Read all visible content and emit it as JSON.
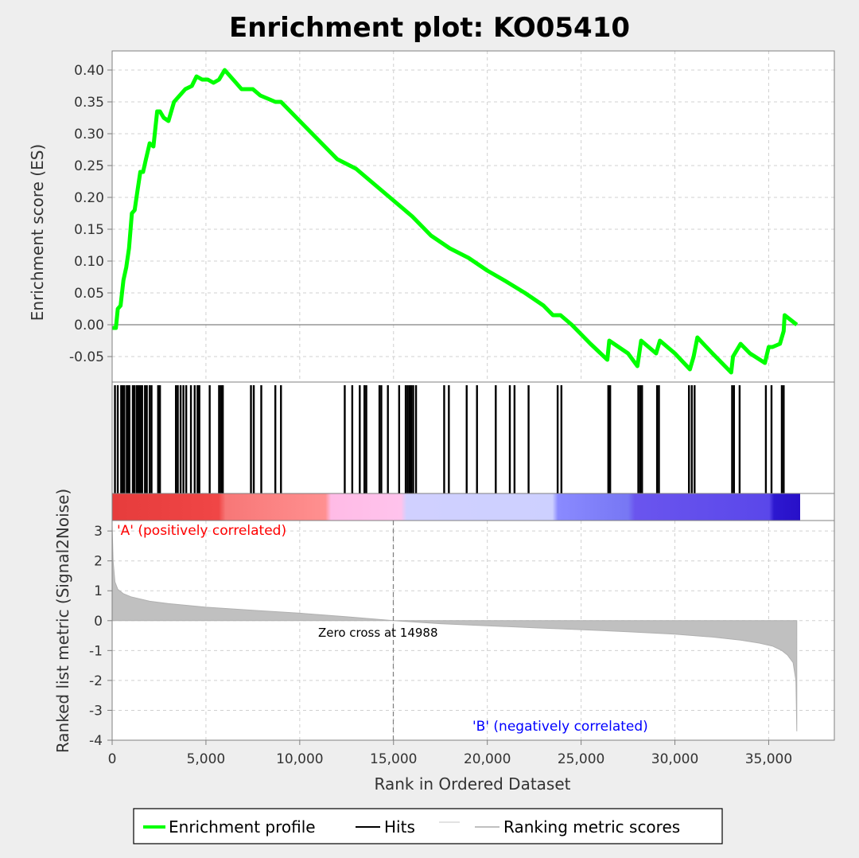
{
  "title": "Enrichment plot: KO05410",
  "colors": {
    "background": "#eeeeee",
    "plot_background": "#ffffff",
    "es_line": "#00ff00",
    "hits": "#000000",
    "metric_fill": "#c0c0c0",
    "positive_label": "#ff0000",
    "negative_label": "#0000ff"
  },
  "chart_data": [
    {
      "type": "line",
      "name": "enrichment-score-panel",
      "ylabel": "Enrichment score (ES)",
      "xlim": [
        0,
        38500
      ],
      "ylim": [
        -0.09,
        0.43
      ],
      "yticks": [
        0.4,
        0.35,
        0.3,
        0.25,
        0.2,
        0.15,
        0.1,
        0.05,
        0.0,
        -0.05
      ],
      "ytick_labels": [
        "0.40",
        "0.35",
        "0.30",
        "0.25",
        "0.20",
        "0.15",
        "0.10",
        "0.05",
        "0.00",
        "-0.05"
      ],
      "grid": true,
      "series": [
        {
          "name": "Enrichment profile",
          "x": [
            0,
            200,
            300,
            450,
            600,
            750,
            900,
            1050,
            1200,
            1350,
            1500,
            1650,
            1800,
            2000,
            2200,
            2400,
            2550,
            2750,
            3000,
            3300,
            3600,
            3900,
            4250,
            4500,
            4800,
            5100,
            5400,
            5700,
            6000,
            6300,
            6600,
            6900,
            7300,
            7500,
            7900,
            8300,
            8700,
            9000,
            10000,
            11000,
            12000,
            13000,
            14000,
            15000,
            16000,
            17000,
            18000,
            19000,
            20000,
            21000,
            22000,
            23000,
            23500,
            23900,
            24500,
            25500,
            26400,
            26500,
            27500,
            28000,
            28200,
            29000,
            29200,
            30000,
            30800,
            31000,
            31200,
            32000,
            33000,
            33100,
            33500,
            34000,
            34800,
            35000,
            35200,
            35600,
            35800,
            35850,
            36500
          ],
          "values": [
            -0.005,
            -0.005,
            0.025,
            0.03,
            0.07,
            0.09,
            0.12,
            0.175,
            0.18,
            0.21,
            0.24,
            0.24,
            0.26,
            0.285,
            0.28,
            0.335,
            0.335,
            0.325,
            0.32,
            0.35,
            0.36,
            0.37,
            0.375,
            0.39,
            0.385,
            0.385,
            0.38,
            0.385,
            0.4,
            0.39,
            0.38,
            0.37,
            0.37,
            0.37,
            0.36,
            0.355,
            0.35,
            0.35,
            0.32,
            0.29,
            0.26,
            0.245,
            0.22,
            0.195,
            0.17,
            0.14,
            0.12,
            0.105,
            0.085,
            0.068,
            0.05,
            0.03,
            0.015,
            0.015,
            0.0,
            -0.03,
            -0.055,
            -0.025,
            -0.045,
            -0.065,
            -0.025,
            -0.045,
            -0.025,
            -0.045,
            -0.07,
            -0.05,
            -0.02,
            -0.045,
            -0.075,
            -0.05,
            -0.03,
            -0.045,
            -0.06,
            -0.035,
            -0.035,
            -0.03,
            -0.01,
            0.015,
            0.0
          ]
        }
      ]
    },
    {
      "type": "bar",
      "name": "hits-panel",
      "series_name": "Hits",
      "hit_positions": [
        150,
        300,
        480,
        560,
        650,
        780,
        850,
        920,
        1100,
        1180,
        1300,
        1380,
        1450,
        1520,
        1600,
        1750,
        1850,
        2000,
        2100,
        2450,
        2550,
        3400,
        3500,
        3650,
        3800,
        3950,
        4200,
        4400,
        4550,
        4650,
        5200,
        5700,
        5800,
        5900,
        7400,
        7550,
        7950,
        8700,
        9000,
        12400,
        12800,
        13200,
        13450,
        13550,
        14250,
        14350,
        14700,
        15300,
        15650,
        15750,
        15850,
        15950,
        16050,
        16200,
        17700,
        17950,
        18900,
        19450,
        20450,
        21200,
        21450,
        22200,
        23750,
        23950,
        26450,
        26550,
        28050,
        28150,
        28250,
        29050,
        29150,
        30750,
        30900,
        31050,
        33050,
        33150,
        33450,
        34850,
        35150,
        35700,
        35800
      ]
    },
    {
      "type": "area",
      "name": "ranked-metric-panel",
      "series_name": "Ranking metric scores",
      "ylabel": "Ranked list metric (Signal2Noise)",
      "xlabel": "Rank in Ordered Dataset",
      "xlim": [
        0,
        38500
      ],
      "ylim": [
        -4,
        3.35
      ],
      "xticks": [
        0,
        5000,
        10000,
        15000,
        20000,
        25000,
        30000,
        35000
      ],
      "xtick_labels": [
        "0",
        "5,000",
        "10,000",
        "15,000",
        "20,000",
        "25,000",
        "30,000",
        "35,000"
      ],
      "yticks": [
        3,
        2,
        1,
        0,
        -1,
        -2,
        -3,
        -4
      ],
      "ytick_labels": [
        "3",
        "2",
        "1",
        "0",
        "-1",
        "-2",
        "-3",
        "-4"
      ],
      "x": [
        0,
        50,
        150,
        300,
        600,
        1000,
        2000,
        3000,
        5000,
        7500,
        10000,
        12500,
        14988,
        17500,
        20000,
        22500,
        25000,
        27500,
        30000,
        32000,
        33500,
        34500,
        35200,
        35700,
        36000,
        36300,
        36450,
        36500
      ],
      "values": [
        3.2,
        2.0,
        1.3,
        1.05,
        0.9,
        0.8,
        0.65,
        0.57,
        0.45,
        0.35,
        0.25,
        0.13,
        0.0,
        -0.1,
        -0.17,
        -0.24,
        -0.3,
        -0.37,
        -0.45,
        -0.55,
        -0.65,
        -0.75,
        -0.85,
        -1.0,
        -1.15,
        -1.4,
        -2.0,
        -3.7
      ],
      "zero_cross": 14988,
      "zero_cross_label": "Zero cross at 14988",
      "positive_label": "'A' (positively correlated)",
      "negative_label": "'B' (negatively correlated)"
    }
  ],
  "legend": {
    "items": [
      {
        "label": "Enrichment profile",
        "color": "#00ff00"
      },
      {
        "label": "Hits",
        "color": "#000000"
      },
      {
        "label": "Ranking metric scores",
        "color": "#c0c0c0"
      }
    ]
  }
}
